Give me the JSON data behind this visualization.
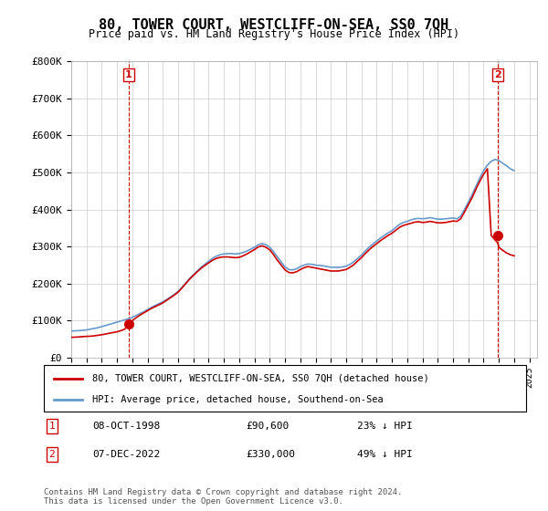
{
  "title": "80, TOWER COURT, WESTCLIFF-ON-SEA, SS0 7QH",
  "subtitle": "Price paid vs. HM Land Registry's House Price Index (HPI)",
  "ylabel_ticks": [
    "£0",
    "£100K",
    "£200K",
    "£300K",
    "£400K",
    "£500K",
    "£600K",
    "£700K",
    "£800K"
  ],
  "ylim": [
    0,
    800000
  ],
  "xlim_start": 1995.0,
  "xlim_end": 2025.5,
  "legend_line1": "80, TOWER COURT, WESTCLIFF-ON-SEA, SS0 7QH (detached house)",
  "legend_line2": "HPI: Average price, detached house, Southend-on-Sea",
  "annotation1_label": "1",
  "annotation1_date": "08-OCT-1998",
  "annotation1_price": "£90,600",
  "annotation1_hpi": "23% ↓ HPI",
  "annotation2_label": "2",
  "annotation2_date": "07-DEC-2022",
  "annotation2_price": "£330,000",
  "annotation2_hpi": "49% ↓ HPI",
  "footer": "Contains HM Land Registry data © Crown copyright and database right 2024.\nThis data is licensed under the Open Government Licence v3.0.",
  "red_line_color": "#cc0000",
  "blue_line_color": "#6699cc",
  "point1_x": 1998.77,
  "point1_y": 90600,
  "point2_x": 2022.92,
  "point2_y": 330000,
  "hpi_data_x": [
    1995.0,
    1995.25,
    1995.5,
    1995.75,
    1996.0,
    1996.25,
    1996.5,
    1996.75,
    1997.0,
    1997.25,
    1997.5,
    1997.75,
    1998.0,
    1998.25,
    1998.5,
    1998.75,
    1999.0,
    1999.25,
    1999.5,
    1999.75,
    2000.0,
    2000.25,
    2000.5,
    2000.75,
    2001.0,
    2001.25,
    2001.5,
    2001.75,
    2002.0,
    2002.25,
    2002.5,
    2002.75,
    2003.0,
    2003.25,
    2003.5,
    2003.75,
    2004.0,
    2004.25,
    2004.5,
    2004.75,
    2005.0,
    2005.25,
    2005.5,
    2005.75,
    2006.0,
    2006.25,
    2006.5,
    2006.75,
    2007.0,
    2007.25,
    2007.5,
    2007.75,
    2008.0,
    2008.25,
    2008.5,
    2008.75,
    2009.0,
    2009.25,
    2009.5,
    2009.75,
    2010.0,
    2010.25,
    2010.5,
    2010.75,
    2011.0,
    2011.25,
    2011.5,
    2011.75,
    2012.0,
    2012.25,
    2012.5,
    2012.75,
    2013.0,
    2013.25,
    2013.5,
    2013.75,
    2014.0,
    2014.25,
    2014.5,
    2014.75,
    2015.0,
    2015.25,
    2015.5,
    2015.75,
    2016.0,
    2016.25,
    2016.5,
    2016.75,
    2017.0,
    2017.25,
    2017.5,
    2017.75,
    2018.0,
    2018.25,
    2018.5,
    2018.75,
    2019.0,
    2019.25,
    2019.5,
    2019.75,
    2020.0,
    2020.25,
    2020.5,
    2020.75,
    2021.0,
    2021.25,
    2021.5,
    2021.75,
    2022.0,
    2022.25,
    2022.5,
    2022.75,
    2023.0,
    2023.25,
    2023.5,
    2023.75,
    2024.0
  ],
  "hpi_data_y": [
    72000,
    72500,
    73000,
    74000,
    75000,
    77000,
    79000,
    81000,
    84000,
    87000,
    90000,
    93000,
    96000,
    99000,
    102000,
    105000,
    109000,
    114000,
    119000,
    124000,
    130000,
    136000,
    141000,
    146000,
    151000,
    157000,
    164000,
    171000,
    179000,
    190000,
    202000,
    214000,
    224000,
    234000,
    244000,
    252000,
    260000,
    268000,
    274000,
    278000,
    280000,
    281000,
    281000,
    280000,
    281000,
    284000,
    288000,
    293000,
    298000,
    305000,
    308000,
    305000,
    298000,
    286000,
    272000,
    258000,
    245000,
    238000,
    237000,
    240000,
    246000,
    250000,
    253000,
    252000,
    250000,
    249000,
    248000,
    246000,
    244000,
    244000,
    244000,
    245000,
    247000,
    252000,
    259000,
    268000,
    277000,
    288000,
    298000,
    307000,
    315000,
    323000,
    330000,
    337000,
    343000,
    352000,
    360000,
    365000,
    368000,
    372000,
    375000,
    376000,
    375000,
    376000,
    378000,
    376000,
    374000,
    374000,
    375000,
    376000,
    377000,
    375000,
    382000,
    400000,
    420000,
    440000,
    463000,
    485000,
    505000,
    520000,
    530000,
    535000,
    532000,
    525000,
    518000,
    510000,
    505000
  ],
  "red_line_x": [
    1995.0,
    1995.25,
    1995.5,
    1995.75,
    1996.0,
    1996.25,
    1996.5,
    1996.75,
    1997.0,
    1997.25,
    1997.5,
    1997.75,
    1998.0,
    1998.25,
    1998.5,
    1998.77,
    1999.0,
    1999.25,
    1999.5,
    1999.75,
    2000.0,
    2000.25,
    2000.5,
    2000.75,
    2001.0,
    2001.25,
    2001.5,
    2001.75,
    2002.0,
    2002.25,
    2002.5,
    2002.75,
    2003.0,
    2003.25,
    2003.5,
    2003.75,
    2004.0,
    2004.25,
    2004.5,
    2004.75,
    2005.0,
    2005.25,
    2005.5,
    2005.75,
    2006.0,
    2006.25,
    2006.5,
    2006.75,
    2007.0,
    2007.25,
    2007.5,
    2007.75,
    2008.0,
    2008.25,
    2008.5,
    2008.75,
    2009.0,
    2009.25,
    2009.5,
    2009.75,
    2010.0,
    2010.25,
    2010.5,
    2010.75,
    2011.0,
    2011.25,
    2011.5,
    2011.75,
    2012.0,
    2012.25,
    2012.5,
    2012.75,
    2013.0,
    2013.25,
    2013.5,
    2013.75,
    2014.0,
    2014.25,
    2014.5,
    2014.75,
    2015.0,
    2015.25,
    2015.5,
    2015.75,
    2016.0,
    2016.25,
    2016.5,
    2016.75,
    2017.0,
    2017.25,
    2017.5,
    2017.75,
    2018.0,
    2018.25,
    2018.5,
    2018.75,
    2019.0,
    2019.25,
    2019.5,
    2019.75,
    2020.0,
    2020.25,
    2020.5,
    2020.75,
    2021.0,
    2021.25,
    2021.5,
    2021.75,
    2022.0,
    2022.25,
    2022.5,
    2022.92,
    2023.0,
    2023.25,
    2023.5,
    2023.75,
    2024.0
  ],
  "red_line_y": [
    55000,
    55500,
    56000,
    57000,
    57500,
    58000,
    59000,
    60500,
    62000,
    64000,
    66000,
    68000,
    70000,
    73000,
    77000,
    90600,
    100000,
    108000,
    115000,
    121000,
    127000,
    133000,
    138000,
    143000,
    148000,
    155000,
    162000,
    169000,
    177000,
    188000,
    200000,
    212000,
    222000,
    232000,
    241000,
    249000,
    256000,
    263000,
    268000,
    271000,
    272000,
    272000,
    271000,
    270000,
    271000,
    275000,
    280000,
    286000,
    292000,
    299000,
    302000,
    298000,
    291000,
    278000,
    263000,
    250000,
    237000,
    230000,
    229000,
    232000,
    238000,
    243000,
    246000,
    244000,
    242000,
    240000,
    238000,
    236000,
    234000,
    234000,
    234000,
    236000,
    238000,
    244000,
    251000,
    261000,
    270000,
    281000,
    291000,
    300000,
    308000,
    316000,
    323000,
    330000,
    336000,
    344000,
    352000,
    357000,
    360000,
    363000,
    366000,
    367000,
    365000,
    366000,
    368000,
    366000,
    364000,
    364000,
    365000,
    367000,
    369000,
    368000,
    375000,
    393000,
    413000,
    432000,
    455000,
    476000,
    495000,
    510000,
    330000,
    310000,
    298000,
    290000,
    283000,
    278000,
    275000
  ]
}
